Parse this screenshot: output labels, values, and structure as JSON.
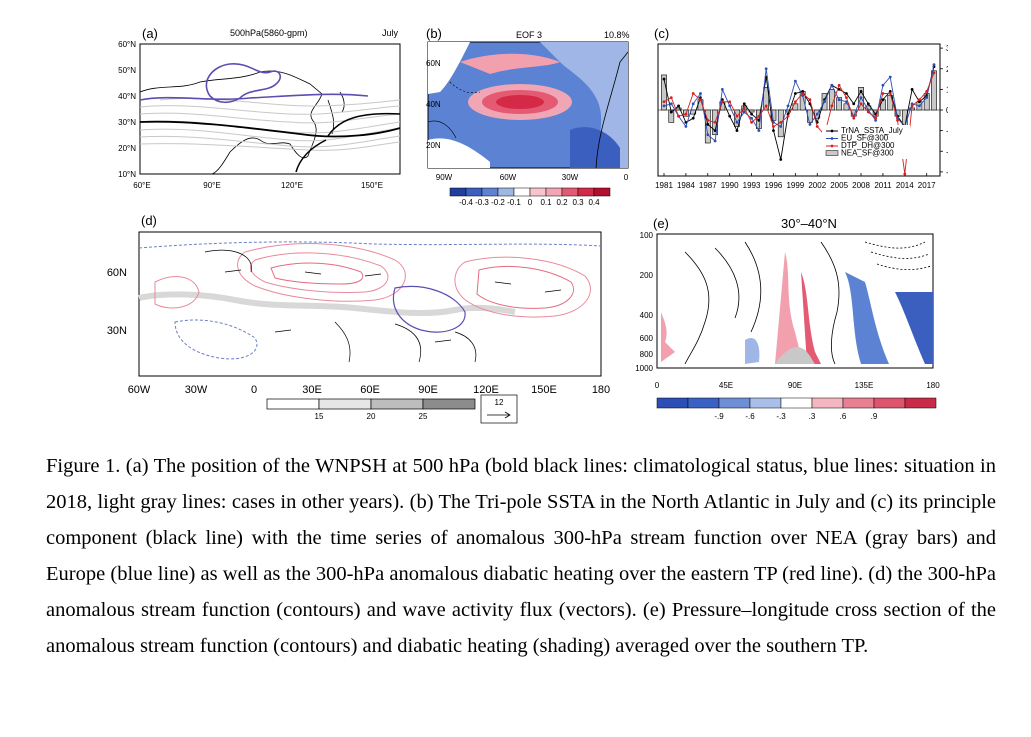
{
  "panel_a": {
    "label": "(a)",
    "title": "500hPa(5860-gpm)",
    "month": "July",
    "x_ticks": [
      "60°E",
      "90°E",
      "120°E",
      "150°E"
    ],
    "y_ticks": [
      "60°N",
      "50°N",
      "40°N",
      "30°N",
      "20°N",
      "10°N"
    ]
  },
  "panel_b": {
    "label": "(b)",
    "title": "EOF 3",
    "variance": "10.8%",
    "x_ticks": [
      "90W",
      "60W",
      "30W",
      "0"
    ],
    "y_ticks": [
      "60N",
      "40N",
      "20N"
    ],
    "colorbar_labels": [
      "-0.4",
      "-0.3",
      "-0.2",
      "-0.1",
      "0",
      "0.1",
      "0.2",
      "0.3",
      "0.4"
    ]
  },
  "panel_c": {
    "label": "(c)",
    "chart_data": {
      "type": "bar",
      "title": "",
      "xlabel": "",
      "ylabel": "",
      "ylim": [
        -3.2,
        3.2
      ],
      "x_ticks": [
        "1981",
        "1984",
        "1987",
        "1990",
        "1993",
        "1996",
        "1999",
        "2002",
        "2005",
        "2008",
        "2011",
        "2014",
        "2017"
      ],
      "y_ticks": [
        "3",
        "2",
        "1",
        "0",
        "-1",
        "-2",
        "-3"
      ],
      "years": [
        1981,
        1982,
        1983,
        1984,
        1985,
        1986,
        1987,
        1988,
        1989,
        1990,
        1991,
        1992,
        1993,
        1994,
        1995,
        1996,
        1997,
        1998,
        1999,
        2000,
        2001,
        2002,
        2003,
        2004,
        2005,
        2006,
        2007,
        2008,
        2009,
        2010,
        2011,
        2012,
        2013,
        2014,
        2015,
        2016,
        2017,
        2018
      ],
      "series": [
        {
          "name": "TrNA_SSTA_July",
          "kind": "line",
          "color": "#000000",
          "values": [
            1.5,
            -0.1,
            0.2,
            -0.6,
            -0.4,
            0.6,
            -0.7,
            -1.0,
            0.5,
            -0.3,
            -1.0,
            0.3,
            -0.2,
            -0.5,
            1.6,
            -1.0,
            -2.4,
            -0.2,
            0.8,
            0.9,
            0.3,
            -0.6,
            0.5,
            1.2,
            1.0,
            0.8,
            0.3,
            0.9,
            0.3,
            -0.2,
            0.5,
            0.9,
            -0.3,
            -0.8,
            1.0,
            0.4,
            0.7,
            2.1
          ]
        },
        {
          "name": "EU_SF@300",
          "kind": "line",
          "color": "#2b4fb5",
          "values": [
            0.2,
            0.3,
            -0.3,
            -0.8,
            0.3,
            0.8,
            -1.2,
            -1.5,
            1.0,
            0.2,
            -0.6,
            -0.1,
            -0.4,
            -1.0,
            2.0,
            -0.6,
            -0.8,
            0.2,
            1.4,
            0.7,
            -0.7,
            -0.2,
            0.4,
            1.2,
            0.5,
            0.4,
            -0.3,
            0.6,
            0.0,
            -0.5,
            1.2,
            1.6,
            -0.4,
            -0.8,
            0.3,
            0.2,
            0.6,
            2.2
          ]
        },
        {
          "name": "DTP_DH@300",
          "kind": "line",
          "color": "#d62020",
          "values": [
            0.4,
            0.6,
            -0.3,
            -0.2,
            0.8,
            0.5,
            -0.5,
            -0.6,
            0.4,
            0.4,
            -0.3,
            0.1,
            -0.6,
            -0.3,
            0.2,
            -0.8,
            -0.6,
            -0.3,
            0.4,
            0.8,
            0.5,
            -0.8,
            -1.2,
            0.2,
            1.2,
            0.6,
            -0.4,
            0.3,
            -0.1,
            -0.4,
            0.8,
            0.8,
            -0.5,
            -3.1,
            0.2,
            0.5,
            0.9,
            1.8
          ]
        },
        {
          "name": "NEA_SF@300",
          "kind": "bar",
          "color": "#c8c8c8",
          "values": [
            1.7,
            -0.6,
            0.1,
            -0.3,
            -0.2,
            0.5,
            -1.6,
            -1.2,
            0.4,
            0.0,
            -0.8,
            0.2,
            -0.1,
            -0.9,
            1.1,
            -0.5,
            -1.3,
            -0.1,
            0.3,
            0.9,
            -0.6,
            -0.4,
            0.8,
            1.0,
            0.6,
            0.3,
            -0.3,
            1.1,
            0.2,
            -0.3,
            0.5,
            0.7,
            -0.3,
            -1.1,
            0.1,
            0.4,
            0.8,
            1.9
          ]
        }
      ]
    }
  },
  "panel_d": {
    "label": "(d)",
    "x_ticks": [
      "60W",
      "30W",
      "0",
      "30E",
      "60E",
      "90E",
      "120E",
      "150E",
      "180"
    ],
    "y_ticks": [
      "60N",
      "30N"
    ],
    "colorbar_labels": [
      "15",
      "20",
      "25"
    ],
    "ref_vector": "12"
  },
  "panel_e": {
    "label": "(e)",
    "title": "30°–40°N",
    "x_ticks": [
      "0",
      "45E",
      "90E",
      "135E",
      "180"
    ],
    "y_ticks": [
      "100",
      "200",
      "400",
      "600",
      "800",
      "1000"
    ],
    "colorbar_labels": [
      "-.9",
      "-.6",
      "-.3",
      ".3",
      ".6",
      ".9"
    ]
  },
  "caption": "Figure 1. (a) The position of the WNPSH at 500 hPa (bold black lines: climatological status, blue lines: situation in 2018, light gray lines: cases in other years). (b) The Tri-pole SSTA in the North Atlantic in July and (c) its principle component (black line) with the time series of anomalous 300-hPa stream function over NEA (gray bars) and Europe (blue line) as well as the 300-hPa anomalous diabatic heating over the eastern TP (red line). (d) the 300-hPa anomalous stream function (contours) and wave activity flux (vectors). (e) Pressure–longitude cross section of the anomalous stream function (contours) and diabatic heating (shading) averaged over the southern TP.",
  "colors": {
    "positive": "#e23c55",
    "negative": "#3a62c4",
    "wnpsh_2018": "#5a4fb0",
    "gray_lines": "#c8c8c8"
  }
}
